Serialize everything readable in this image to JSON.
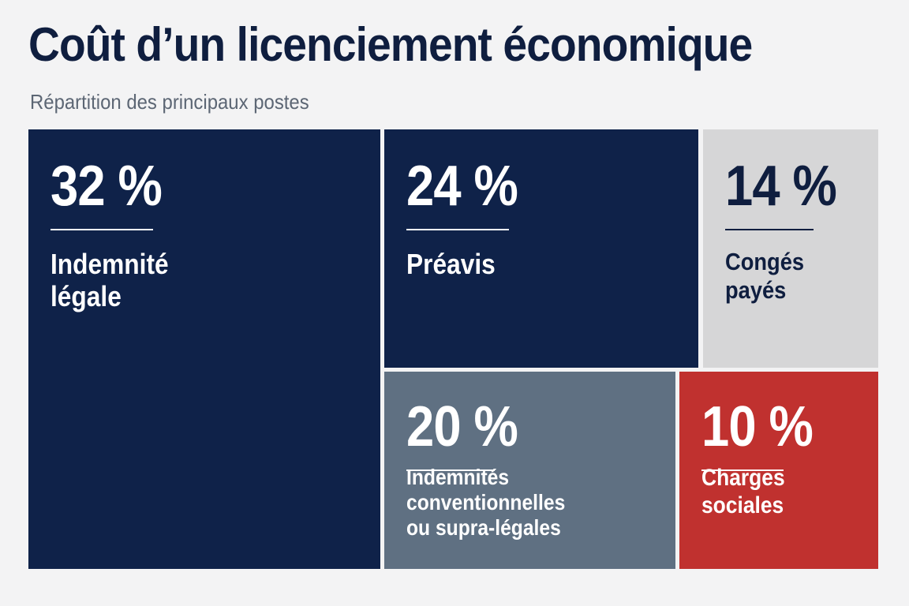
{
  "chart_data": {
    "type": "treemap",
    "title": "Coût d’un licenciement économique",
    "subtitle": "Répartition des principaux postes",
    "items": [
      {
        "id": "indemnite-legale",
        "label": "Indemnité légale",
        "lines": [
          "Indemnité",
          "légale"
        ],
        "value": 32,
        "display": "32 %",
        "color": "#0f2249",
        "text_color": "#ffffff"
      },
      {
        "id": "preavis",
        "label": "Préavis",
        "lines": [
          "Préavis"
        ],
        "value": 24,
        "display": "24 %",
        "color": "#0f2249",
        "text_color": "#ffffff"
      },
      {
        "id": "conges-payes",
        "label": "Congés payés",
        "lines": [
          "Congés",
          "payés"
        ],
        "value": 14,
        "display": "14 %",
        "color": "#d6d6d7",
        "text_color": "#0f1e3f"
      },
      {
        "id": "indemnites-conventionnelles",
        "label": "Indemnités conventionnelles ou supra-légales",
        "lines": [
          "Indemnités",
          "conventionnelles",
          "ou supra-légales"
        ],
        "value": 20,
        "display": "20 %",
        "color": "#5f7082",
        "text_color": "#ffffff"
      },
      {
        "id": "charges-sociales",
        "label": "Charges sociales",
        "lines": [
          "Charges",
          "sociales"
        ],
        "value": 10,
        "display": "10 %",
        "color": "#c0312f",
        "text_color": "#ffffff"
      }
    ]
  }
}
